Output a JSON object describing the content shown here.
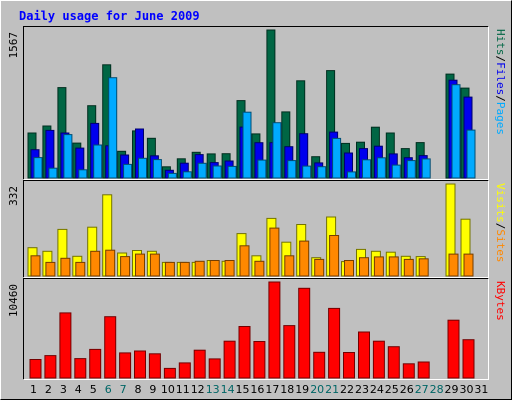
{
  "title": "Daily usage for June 2009",
  "colors": {
    "background": "#ffffff",
    "plot_bg": "#c0c0c0",
    "border_dark": "#000000",
    "border_light": "#ffffff",
    "title": "#0000ff",
    "axis_text": "#000000",
    "weekend": "#006666",
    "hits": "#006644",
    "files": "#0000ee",
    "pages": "#00aaff",
    "visits": "#ffff00",
    "sites": "#ff8800",
    "kbytes": "#ff0000"
  },
  "chart_data": {
    "type": "bar",
    "days": [
      1,
      2,
      3,
      4,
      5,
      6,
      7,
      8,
      9,
      10,
      11,
      12,
      13,
      14,
      15,
      16,
      17,
      18,
      19,
      20,
      21,
      22,
      23,
      24,
      25,
      26,
      27,
      28,
      29,
      30,
      31
    ],
    "weekend_days": [
      6,
      7,
      13,
      14,
      20,
      21,
      27,
      28
    ],
    "panels": [
      {
        "id": "hits_files_pages",
        "max_label": "1567",
        "max": 1567,
        "legend": [
          {
            "text": "Hits",
            "color": "#006644"
          },
          {
            "text": "Files",
            "color": "#0000ee"
          },
          {
            "text": "Pages",
            "color": "#00aaff"
          }
        ],
        "separator": "/",
        "series": [
          {
            "name": "Hits",
            "color": "#006644",
            "values": [
              476,
              551,
              957,
              370,
              766,
              1199,
              283,
              499,
              420,
              119,
              203,
              272,
              255,
              257,
              820,
              467,
              1567,
              700,
              1029,
              226,
              1137,
              366,
              379,
              538,
              476,
              311,
              375,
              0,
              1100,
              952,
              0
            ]
          },
          {
            "name": "Files",
            "color": "#0000ee",
            "values": [
              300,
              504,
              476,
              317,
              578,
              341,
              243,
              519,
              235,
              81,
              157,
              248,
              163,
              180,
              539,
              374,
              374,
              331,
              469,
              160,
              486,
              265,
              311,
              337,
              255,
              215,
              237,
              0,
              1035,
              857,
              0
            ]
          },
          {
            "name": "Pages",
            "color": "#00aaff",
            "values": [
              216,
              104,
              460,
              87,
              349,
              1062,
              144,
              209,
              195,
              49,
              66,
              156,
              127,
              123,
              697,
              190,
              586,
              184,
              126,
              120,
              419,
              65,
              193,
              214,
              137,
              184,
              202,
              0,
              988,
              507,
              0
            ]
          }
        ]
      },
      {
        "id": "visits_sites",
        "max_label": "332",
        "max": 332,
        "legend": [
          {
            "text": "Visits",
            "color": "#ffff00"
          },
          {
            "text": "Sites",
            "color": "#ff8800"
          }
        ],
        "separator": "/",
        "series": [
          {
            "name": "Visits",
            "color": "#ffff00",
            "values": [
              102,
              89,
              168,
              71,
              176,
              293,
              83,
              92,
              89,
              49,
              49,
              49,
              56,
              53,
              153,
              73,
              208,
              122,
              186,
              66,
              213,
              52,
              96,
              89,
              86,
              71,
              70,
              0,
              332,
              205,
              0
            ]
          },
          {
            "name": "Sites",
            "color": "#ff8800",
            "values": [
              73,
              49,
              64,
              49,
              89,
              93,
              70,
              79,
              79,
              49,
              49,
              53,
              56,
              56,
              109,
              53,
              173,
              73,
              126,
              60,
              146,
              56,
              66,
              69,
              69,
              60,
              62,
              0,
              79,
              79,
              0
            ]
          }
        ]
      },
      {
        "id": "kbytes",
        "max_label": "10460",
        "max": 10460,
        "legend": [
          {
            "text": "KBytes",
            "color": "#ff0000"
          }
        ],
        "separator": "",
        "series": [
          {
            "name": "KBytes",
            "color": "#ff0000",
            "values": [
              2020,
              2444,
              7089,
              2119,
              3114,
              6681,
              2740,
              2944,
              2638,
              1045,
              1647,
              3024,
              2079,
              4012,
              5610,
              3980,
              10460,
              5710,
              9773,
              2796,
              7587,
              2778,
              5016,
              4012,
              3410,
              1546,
              1748,
              0,
              6298,
              4175,
              0
            ]
          }
        ]
      }
    ]
  }
}
